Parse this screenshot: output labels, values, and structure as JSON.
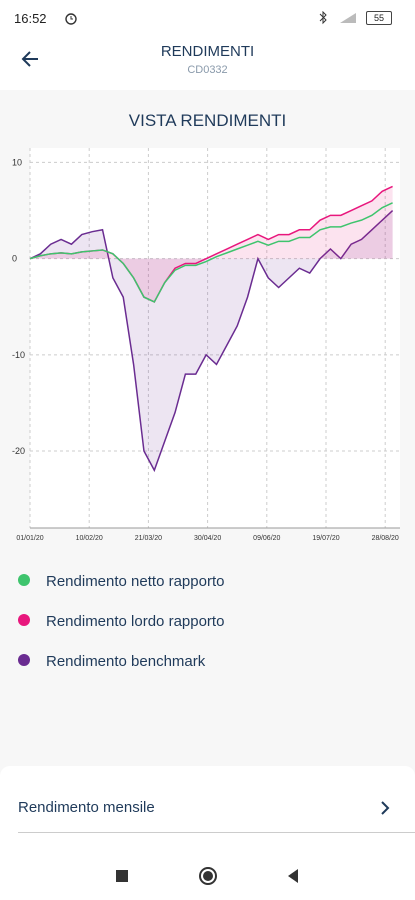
{
  "status_bar": {
    "time": "16:52",
    "battery": "55"
  },
  "header": {
    "title": "RENDIMENTI",
    "subtitle": "CD0332"
  },
  "chart_data": {
    "type": "line",
    "title": "VISTA RENDIMENTI",
    "x": [
      "01/01/20",
      "08/01/20",
      "15/01/20",
      "22/01/20",
      "29/01/20",
      "05/02/20",
      "12/02/20",
      "19/02/20",
      "26/02/20",
      "04/03/20",
      "11/03/20",
      "18/03/20",
      "25/03/20",
      "01/04/20",
      "08/04/20",
      "15/04/20",
      "22/04/20",
      "29/04/20",
      "06/05/20",
      "13/05/20",
      "20/05/20",
      "27/05/20",
      "03/06/20",
      "10/06/20",
      "17/06/20",
      "24/06/20",
      "01/07/20",
      "08/07/20",
      "15/07/20",
      "22/07/20",
      "29/07/20",
      "05/08/20",
      "12/08/20",
      "19/08/20",
      "26/08/20",
      "02/09/20"
    ],
    "series": [
      {
        "name": "Rendimento netto rapporto",
        "color": "#3ec46d",
        "values": [
          0,
          0.3,
          0.5,
          0.6,
          0.5,
          0.7,
          0.8,
          0.9,
          0.5,
          -0.5,
          -2,
          -4,
          -4.5,
          -2.5,
          -1.2,
          -0.7,
          -0.7,
          -0.3,
          0.2,
          0.6,
          1,
          1.4,
          1.8,
          1.4,
          1.8,
          1.8,
          2.2,
          2.2,
          3,
          3.3,
          3.3,
          3.7,
          4,
          4.5,
          5.3,
          5.8
        ]
      },
      {
        "name": "Rendimento lordo rapporto",
        "color": "#e8177d",
        "values": [
          0,
          0.3,
          0.5,
          0.6,
          0.5,
          0.7,
          0.8,
          0.9,
          0.5,
          -0.5,
          -2,
          -4,
          -4.5,
          -2.5,
          -1,
          -0.5,
          -0.5,
          0,
          0.5,
          1,
          1.5,
          2,
          2.5,
          2,
          2.5,
          2.5,
          3,
          3,
          4,
          4.5,
          4.5,
          5,
          5.5,
          6,
          7,
          7.5
        ]
      },
      {
        "name": "Rendimento benchmark",
        "color": "#6a2c91",
        "values": [
          0,
          0.5,
          1.5,
          2,
          1.5,
          2.5,
          2.8,
          3,
          -2,
          -4,
          -11,
          -20,
          -22,
          -19,
          -16,
          -12,
          -12,
          -10,
          -11,
          -9,
          -7,
          -4,
          0,
          -2,
          -3,
          -2,
          -1,
          -1.5,
          0,
          1,
          0,
          1.5,
          2,
          3,
          4,
          5
        ]
      }
    ],
    "xlim": [
      "01/01/20",
      "07/09/20"
    ],
    "xticks": [
      "01/01/20",
      "10/02/20",
      "21/03/20",
      "30/04/20",
      "09/06/20",
      "19/07/20",
      "28/08/20"
    ],
    "ylim": [
      -28,
      11.5
    ],
    "yticks": [
      10,
      0,
      -10,
      -20
    ],
    "grid": true
  },
  "menu": {
    "item": "Rendimento mensile"
  }
}
